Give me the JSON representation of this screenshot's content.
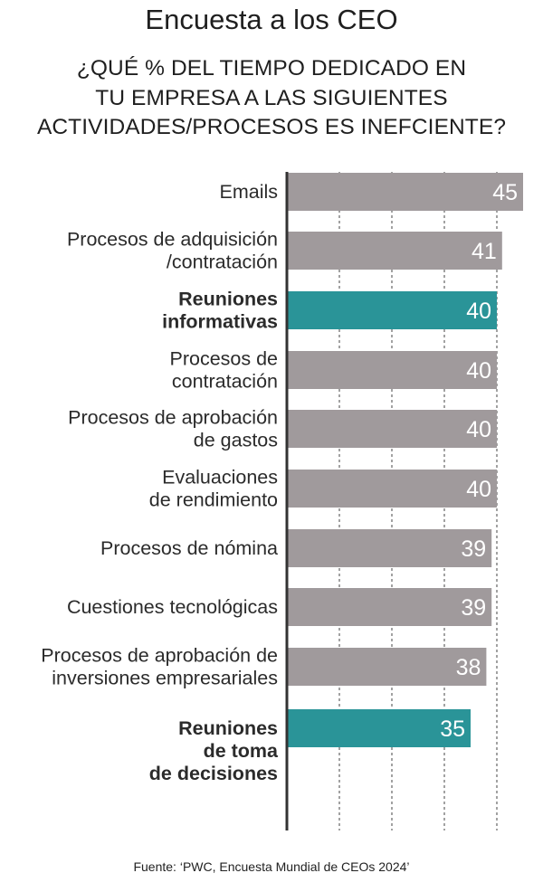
{
  "title": "Encuesta a los CEO",
  "subtitle_lines": [
    "¿QUÉ % DEL TIEMPO DEDICADO EN",
    "TU EMPRESA A LAS SIGUIENTES",
    "ACTIVIDADES/PROCESOS ES INEFCIENTE?"
  ],
  "source": "Fuente: ‘PWC, Encuesta Mundial de CEOs 2024’",
  "colors": {
    "bar": "#a09a9c",
    "highlight": "#2a9498",
    "axis": "#333333",
    "grid": "#444444",
    "value_text": "#ffffff",
    "label_text": "#2b2b2b"
  },
  "chart_data": {
    "type": "bar",
    "orientation": "horizontal",
    "categories": [
      "Emails",
      "Procesos de adquisición /contratación",
      "Reuniones informativas",
      "Procesos de contratación",
      "Procesos de aprobación de gastos",
      "Evaluaciones de rendimiento",
      "Procesos de nómina",
      "Cuestiones tecnológicas",
      "Procesos de aprobación de inversiones empresariales",
      "Reuniones de toma de decisiones"
    ],
    "category_lines": [
      [
        "Emails"
      ],
      [
        "Procesos de adquisición",
        "/contratación"
      ],
      [
        "Reuniones",
        "informativas"
      ],
      [
        "Procesos de",
        "contratación"
      ],
      [
        "Procesos de aprobación",
        "de gastos"
      ],
      [
        "Evaluaciones",
        "de rendimiento"
      ],
      [
        "Procesos de nómina"
      ],
      [
        "Cuestiones tecnológicas"
      ],
      [
        "Procesos de aprobación de",
        "inversiones empresariales"
      ],
      [
        "Reuniones",
        "de toma",
        "de decisiones"
      ]
    ],
    "values": [
      45,
      41,
      40,
      40,
      40,
      40,
      39,
      39,
      38,
      35
    ],
    "value_labels": [
      "45",
      "41",
      "40",
      "40",
      "40",
      "40",
      "39",
      "39",
      "38",
      "35"
    ],
    "highlighted": [
      false,
      false,
      true,
      false,
      false,
      false,
      false,
      false,
      false,
      true
    ],
    "xlim": [
      0,
      45
    ],
    "grid": true,
    "legend": "none"
  }
}
